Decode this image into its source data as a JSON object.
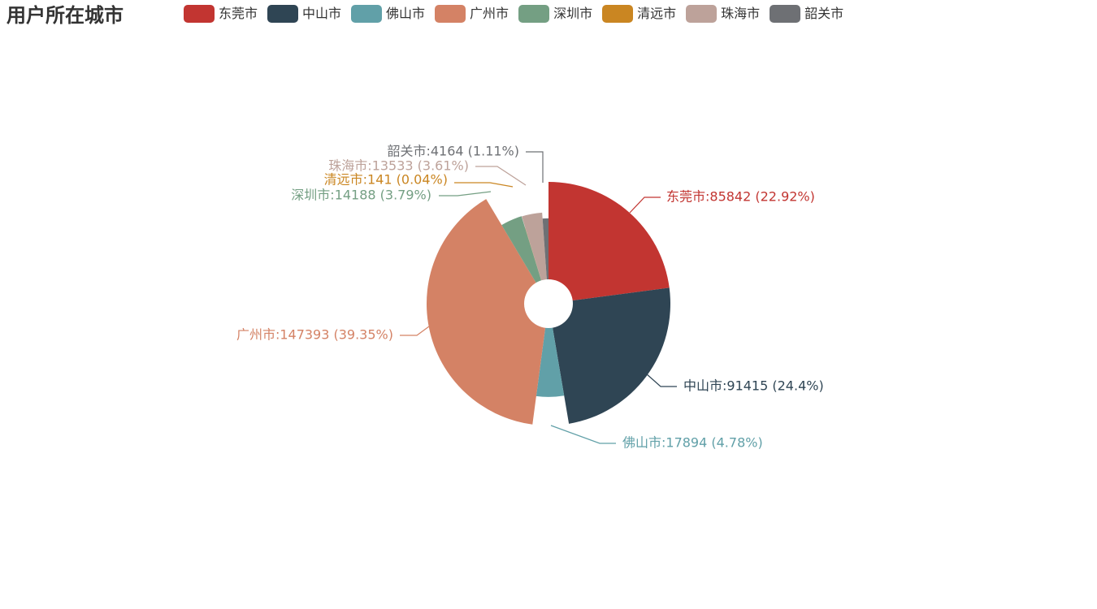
{
  "chart_data": {
    "type": "pie",
    "title": "用户所在城市",
    "legend_placement": "top",
    "donut": true,
    "series": [
      {
        "name": "东莞市",
        "value": 85842,
        "percent": "22.92%",
        "label": "东莞市:85842 (22.92%)",
        "color": "#c23531"
      },
      {
        "name": "中山市",
        "value": 91415,
        "percent": "24.4%",
        "label": "中山市:91415 (24.4%)",
        "color": "#2f4554"
      },
      {
        "name": "佛山市",
        "value": 17894,
        "percent": "4.78%",
        "label": "佛山市:17894 (4.78%)",
        "color": "#61a0a8"
      },
      {
        "name": "广州市",
        "value": 147393,
        "percent": "39.35%",
        "label": "广州市:147393 (39.35%)",
        "color": "#d48265"
      },
      {
        "name": "深圳市",
        "value": 14188,
        "percent": "3.79%",
        "label": "深圳市:14188 (3.79%)",
        "color": "#749f83"
      },
      {
        "name": "清远市",
        "value": 141,
        "percent": "0.04%",
        "label": "清远市:141 (0.04%)",
        "color": "#ca8622"
      },
      {
        "name": "珠海市",
        "value": 13533,
        "percent": "3.61%",
        "label": "珠海市:13533 (3.61%)",
        "color": "#bda29a"
      },
      {
        "name": "韶关市",
        "value": 4164,
        "percent": "1.11%",
        "label": "韶关市:4164 (1.11%)",
        "color": "#6e7074"
      }
    ]
  }
}
